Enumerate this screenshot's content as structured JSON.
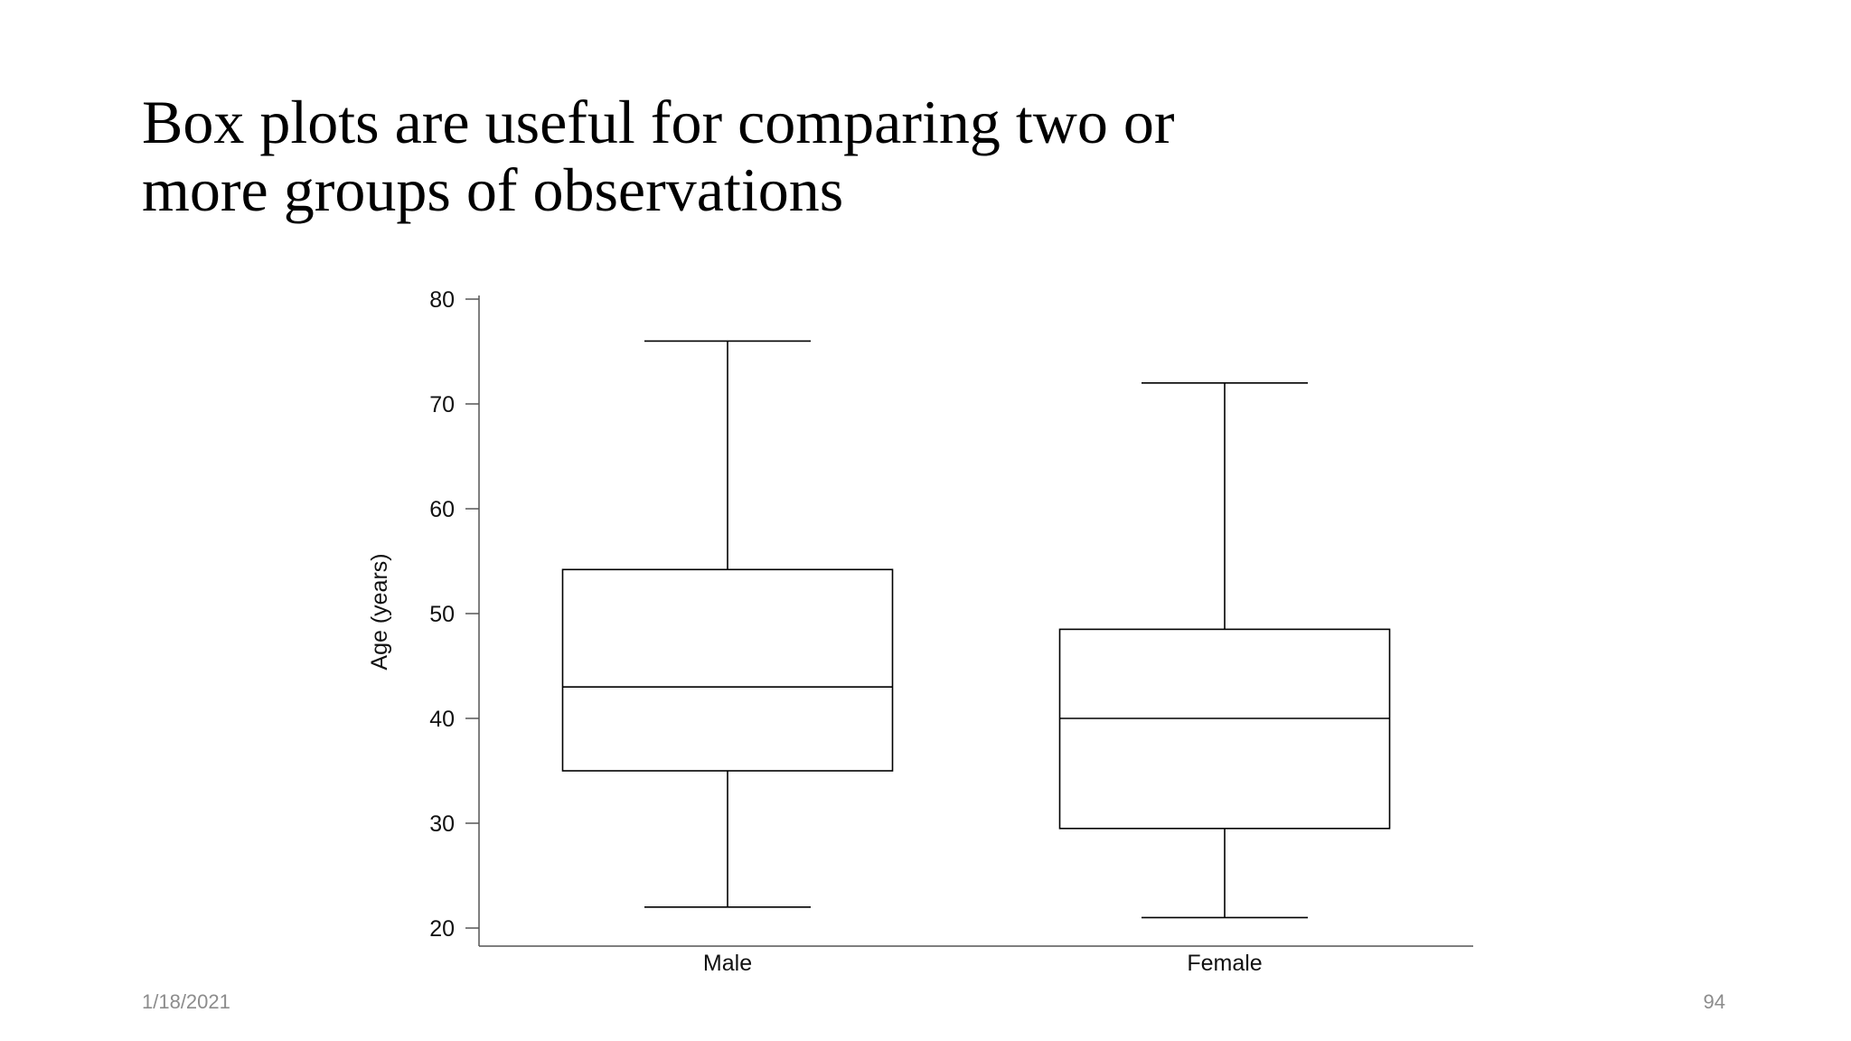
{
  "slide": {
    "title_lines": [
      "Box plots are useful for comparing two or",
      "more groups of observations"
    ],
    "footer_date": "1/18/2021",
    "page_number": "94"
  },
  "chart_data": {
    "type": "boxplot",
    "title": "",
    "xlabel": "",
    "ylabel": "Age (years)",
    "ylim": [
      20,
      80
    ],
    "yticks": [
      20,
      30,
      40,
      50,
      60,
      70,
      80
    ],
    "grid": false,
    "categories": [
      "Male",
      "Female"
    ],
    "boxes": [
      {
        "category": "Male",
        "whisker_low": 22,
        "q1": 35,
        "median": 43,
        "q3": 54.2,
        "whisker_high": 76
      },
      {
        "category": "Female",
        "whisker_low": 21,
        "q1": 29.5,
        "median": 40,
        "q3": 48.5,
        "whisker_high": 72
      }
    ],
    "colors": {
      "line": "#000000",
      "box_fill": "#ffffff",
      "axis": "#555555"
    }
  }
}
